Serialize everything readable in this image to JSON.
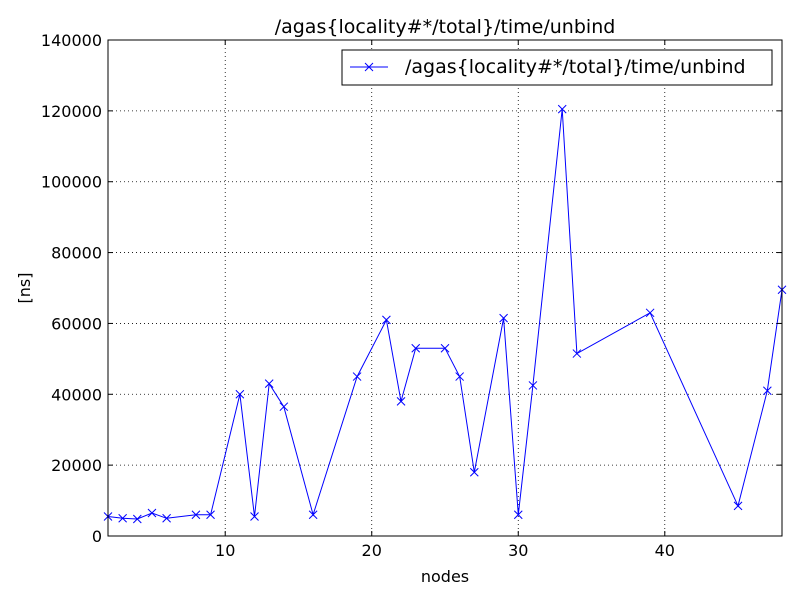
{
  "chart_data": {
    "type": "line",
    "title": "/agas{locality#*/total}/time/unbind",
    "xlabel": "nodes",
    "ylabel": "[ns]",
    "xlim": [
      2,
      48
    ],
    "ylim": [
      0,
      140000
    ],
    "xticks": [
      10,
      20,
      30,
      40
    ],
    "yticks": [
      0,
      20000,
      40000,
      60000,
      80000,
      100000,
      120000,
      140000
    ],
    "x_tick_labels": [
      "10",
      "20",
      "30",
      "40"
    ],
    "y_tick_labels": [
      "0",
      "20000",
      "40000",
      "60000",
      "80000",
      "100000",
      "120000",
      "140000"
    ],
    "grid": true,
    "grid_style": "dotted",
    "legend_position": "top-right",
    "series": [
      {
        "name": "/agas{locality#*/total}/time/unbind",
        "color": "#0000ff",
        "marker": "x",
        "x": [
          2,
          3,
          4,
          5,
          6,
          8,
          9,
          11,
          12,
          13,
          14,
          16,
          19,
          21,
          22,
          23,
          25,
          26,
          27,
          29,
          30,
          31,
          33,
          34,
          39,
          45,
          47,
          48
        ],
        "y": [
          5500,
          5000,
          4800,
          6500,
          5000,
          6000,
          6000,
          40000,
          5500,
          43000,
          36500,
          6000,
          45000,
          61000,
          38000,
          53000,
          53000,
          45000,
          18000,
          61500,
          6000,
          42500,
          120500,
          51500,
          63000,
          8500,
          41000,
          69500
        ]
      }
    ]
  }
}
